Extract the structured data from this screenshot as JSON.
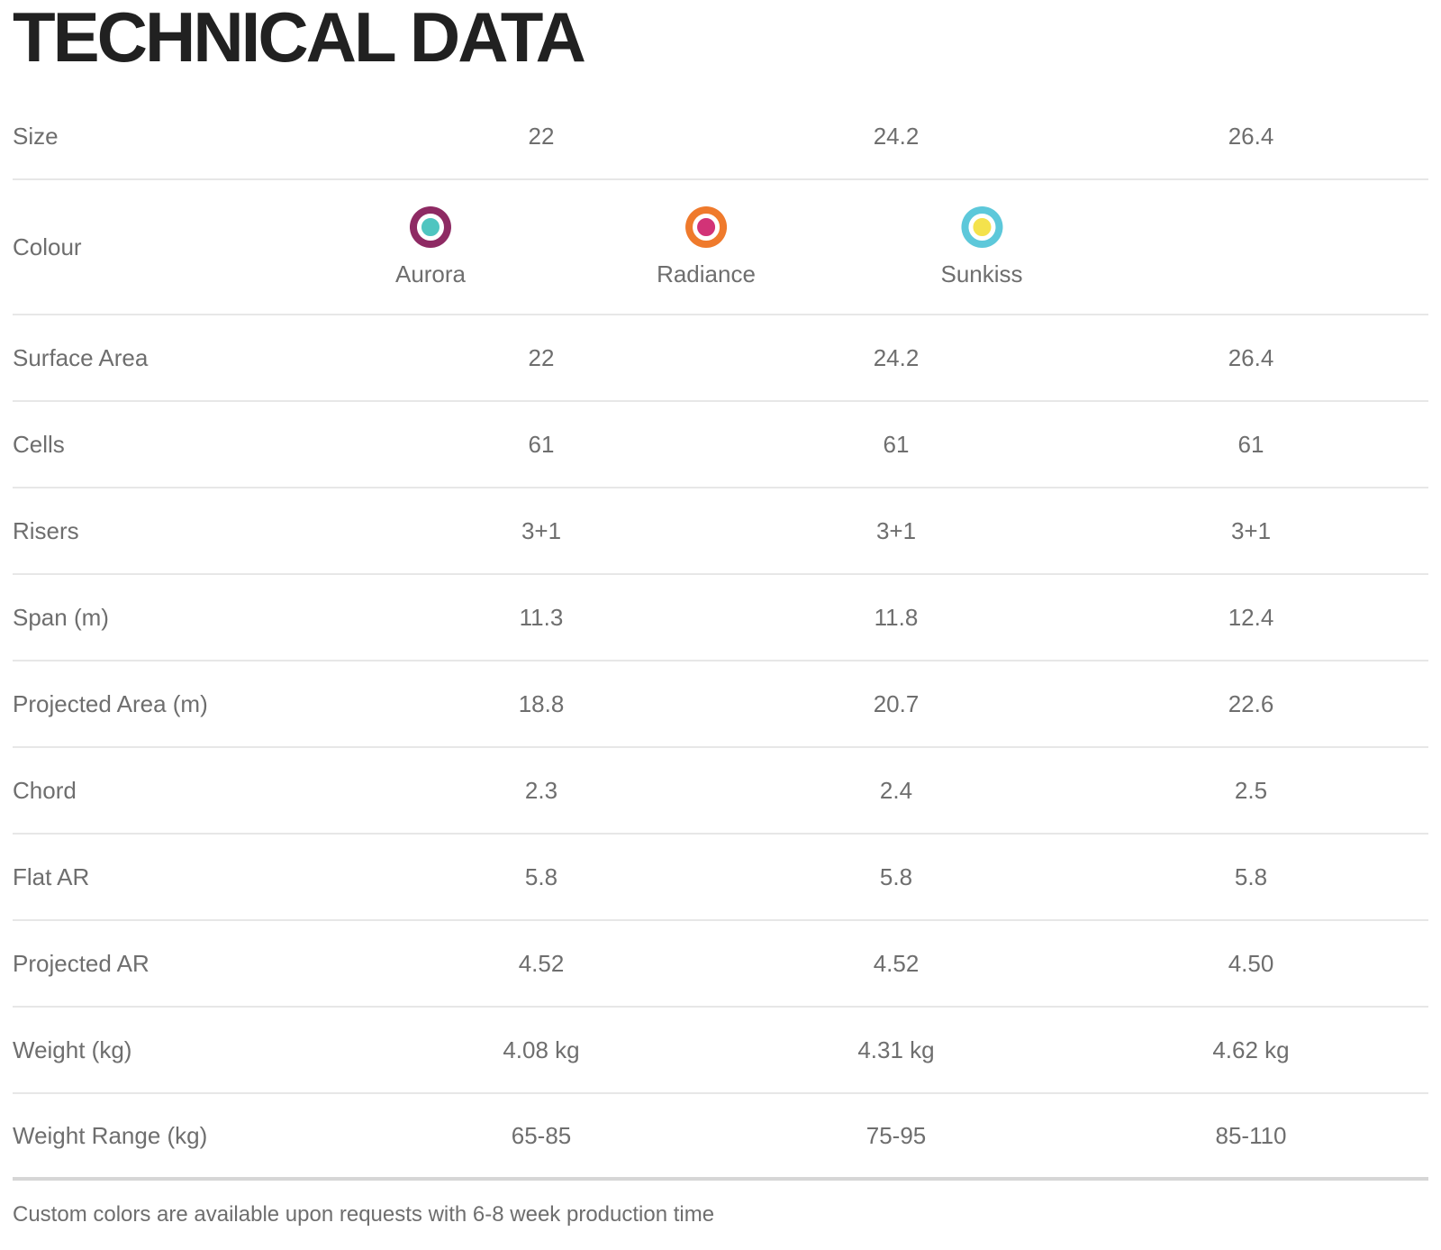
{
  "title": "TECHNICAL DATA",
  "colors": {
    "title_text": "#212121",
    "body_text": "#6e6e6e",
    "divider": "#e7e7e7",
    "thick_divider": "#d6d6d6"
  },
  "colour_row": {
    "label": "Colour",
    "swatches": [
      {
        "name": "Aurora",
        "inner_color": "#4fc5c0",
        "ring_color": "#8e2a63"
      },
      {
        "name": "Radiance",
        "inner_color": "#d23377",
        "ring_color": "#ef7a2c"
      },
      {
        "name": "Sunkiss",
        "inner_color": "#f4e24c",
        "ring_color": "#5dc8da"
      }
    ]
  },
  "table": {
    "rows": [
      {
        "label": "Size",
        "values": [
          "22",
          "24.2",
          "26.4"
        ]
      },
      {
        "label": "Surface Area",
        "values": [
          "22",
          "24.2",
          "26.4"
        ]
      },
      {
        "label": "Cells",
        "values": [
          "61",
          "61",
          "61"
        ]
      },
      {
        "label": "Risers",
        "values": [
          "3+1",
          "3+1",
          "3+1"
        ]
      },
      {
        "label": "Span (m)",
        "values": [
          "11.3",
          "11.8",
          "12.4"
        ]
      },
      {
        "label": "Projected Area (m)",
        "values": [
          "18.8",
          "20.7",
          "22.6"
        ]
      },
      {
        "label": "Chord",
        "values": [
          "2.3",
          "2.4",
          "2.5"
        ]
      },
      {
        "label": "Flat AR",
        "values": [
          "5.8",
          "5.8",
          "5.8"
        ]
      },
      {
        "label": "Projected AR",
        "values": [
          "4.52",
          "4.52",
          "4.50"
        ]
      },
      {
        "label": "Weight (kg)",
        "values": [
          "4.08 kg",
          "4.31 kg",
          "4.62 kg"
        ]
      },
      {
        "label": "Weight Range (kg)",
        "values": [
          "65-85",
          "75-95",
          "85-110"
        ]
      }
    ]
  },
  "footer": "Custom colors are available upon requests with 6-8 week production time"
}
